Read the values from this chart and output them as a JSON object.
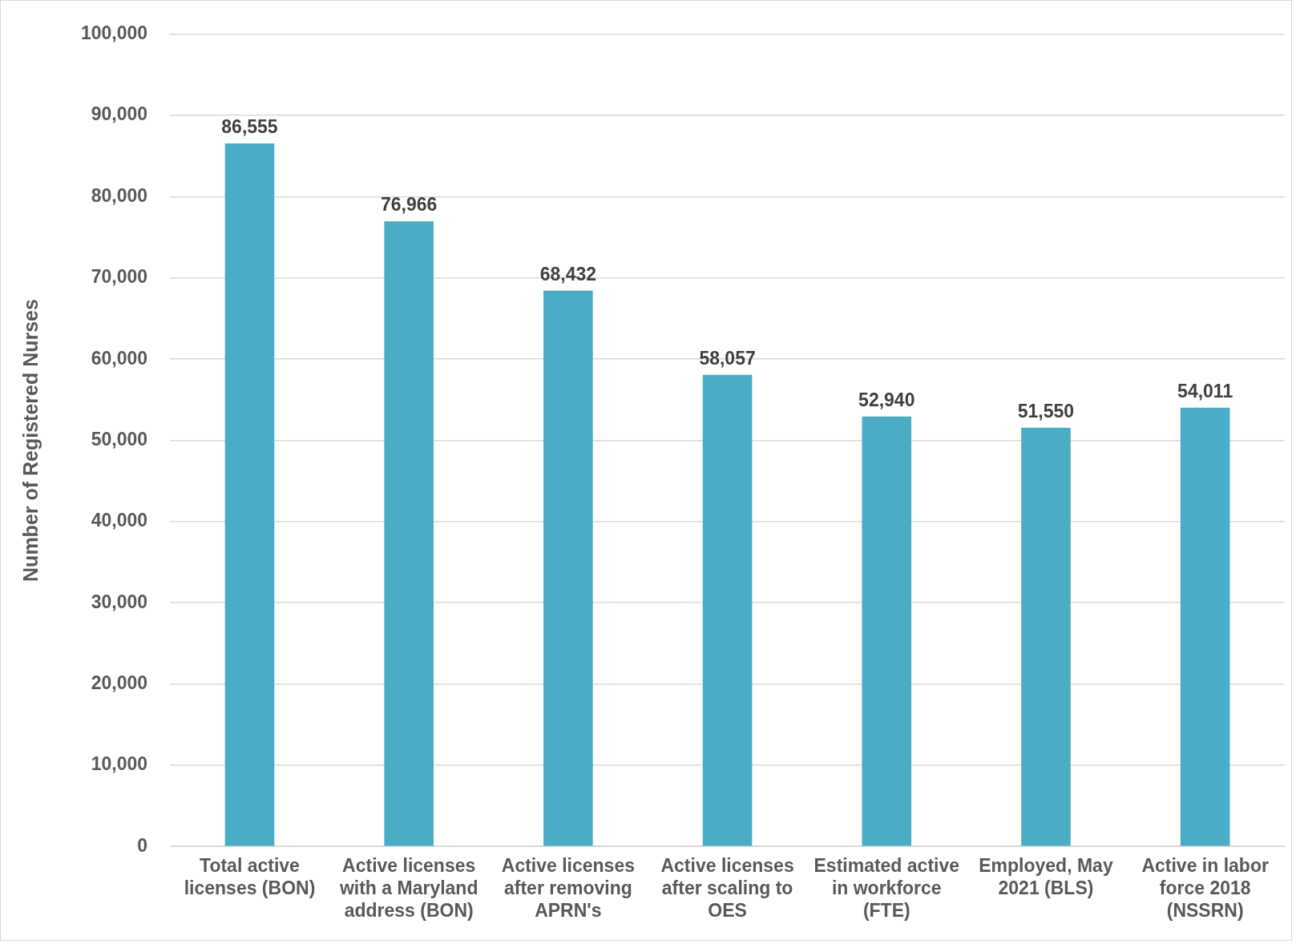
{
  "chart_data": {
    "type": "bar",
    "ylabel": "Number of Registered Nurses",
    "categories": [
      "Total active licenses (BON)",
      "Active licenses with a Maryland address (BON)",
      "Active licenses after removing APRN's",
      "Active licenses after scaling to OES",
      "Estimated active in workforce (FTE)",
      "Employed, May 2021 (BLS)",
      "Active in labor force 2018 (NSSRN)"
    ],
    "values": [
      86555,
      76966,
      68432,
      58057,
      52940,
      51550,
      54011
    ],
    "value_labels": [
      "86,555",
      "76,966",
      "68,432",
      "58,057",
      "52,940",
      "51,550",
      "54,011"
    ],
    "color": "#4bacc6",
    "ylim": [
      0,
      100000
    ],
    "yticks": [
      0,
      {
        "value": 10000,
        "label": "10,000"
      },
      {
        "value": 20000,
        "label": "20,000"
      },
      {
        "value": 30000,
        "label": "30,000"
      },
      {
        "value": 40000,
        "label": "40,000"
      },
      {
        "value": 50000,
        "label": "50,000"
      },
      {
        "value": 60000,
        "label": "60,000"
      },
      {
        "value": 70000,
        "label": "70,000"
      },
      {
        "value": 80000,
        "label": "80,000"
      },
      {
        "value": 90000,
        "label": "90,000"
      },
      {
        "value": 100000,
        "label": "100,000"
      }
    ],
    "grid": "y"
  }
}
